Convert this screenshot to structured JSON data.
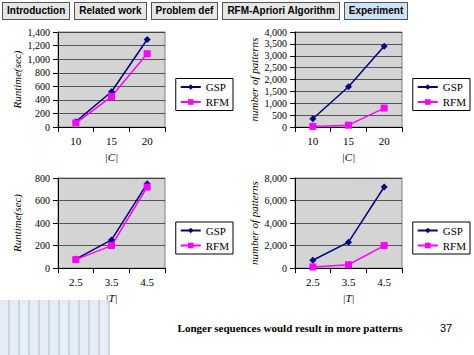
{
  "header": {
    "tabs": [
      "Introduction",
      "Related work",
      "Problem def",
      "RFM-Apriori Algorithm",
      "Experiment"
    ]
  },
  "chart_data": [
    {
      "type": "line",
      "x_label": "|C|",
      "y_label": "Runtime(sec)",
      "categories": [
        "10",
        "15",
        "20"
      ],
      "series": [
        {
          "name": "GSP",
          "color": "#000080",
          "marker": "diamond",
          "values": [
            80,
            520,
            1290
          ]
        },
        {
          "name": "RFM",
          "color": "#ff00ff",
          "marker": "square",
          "values": [
            60,
            450,
            1080
          ]
        }
      ],
      "ylim": [
        0,
        1400
      ],
      "yticks": [
        0,
        200,
        400,
        600,
        800,
        1000,
        1200,
        1400
      ],
      "grid": true,
      "legend": "right"
    },
    {
      "type": "line",
      "x_label": "|C|",
      "y_label": "number of patterns",
      "categories": [
        "10",
        "15",
        "20"
      ],
      "series": [
        {
          "name": "GSP",
          "color": "#000080",
          "marker": "diamond",
          "values": [
            350,
            1700,
            3400
          ]
        },
        {
          "name": "RFM",
          "color": "#ff00ff",
          "marker": "square",
          "values": [
            30,
            80,
            800
          ]
        }
      ],
      "ylim": [
        0,
        4000
      ],
      "yticks": [
        0,
        500,
        1000,
        1500,
        2000,
        2500,
        3000,
        3500,
        4000
      ],
      "grid": true,
      "legend": "right"
    },
    {
      "type": "line",
      "x_label": "|T|",
      "y_label": "Runtime(sec)",
      "categories": [
        "2.5",
        "3.5",
        "4.5"
      ],
      "series": [
        {
          "name": "GSP",
          "color": "#000080",
          "marker": "diamond",
          "values": [
            80,
            250,
            750
          ]
        },
        {
          "name": "RFM",
          "color": "#ff00ff",
          "marker": "square",
          "values": [
            75,
            200,
            720
          ]
        }
      ],
      "ylim": [
        0,
        800
      ],
      "yticks": [
        0,
        200,
        400,
        600,
        800
      ],
      "grid": true,
      "legend": "right"
    },
    {
      "type": "line",
      "x_label": "|T|",
      "y_label": "number of patterns",
      "categories": [
        "2.5",
        "3.5",
        "4.5"
      ],
      "series": [
        {
          "name": "GSP",
          "color": "#000080",
          "marker": "diamond",
          "values": [
            700,
            2300,
            7200
          ]
        },
        {
          "name": "RFM",
          "color": "#ff00ff",
          "marker": "square",
          "values": [
            100,
            300,
            2000
          ]
        }
      ],
      "ylim": [
        0,
        8000
      ],
      "yticks": [
        0,
        2000,
        4000,
        6000,
        8000
      ],
      "grid": true,
      "legend": "right"
    }
  ],
  "footer": {
    "text": "Longer sequences would result in more patterns",
    "page": "37"
  }
}
